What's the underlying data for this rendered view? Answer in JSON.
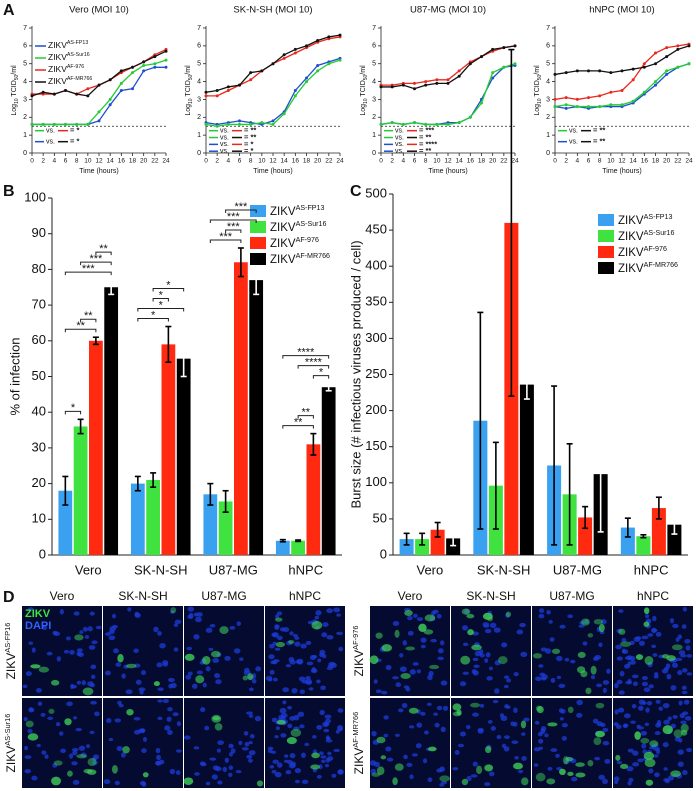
{
  "panel_labels": [
    "A",
    "B",
    "C",
    "D"
  ],
  "chart_data": [
    {
      "type": "line",
      "title": "Vero (MOI 10)",
      "xlabel": "Time (hours)",
      "ylabel": [
        {
          "text": "Log"
        },
        {
          "text": "10",
          "sub": true
        },
        {
          "text": " TCID"
        },
        {
          "text": "50",
          "sub": true
        },
        {
          "text": "/ml"
        }
      ],
      "x": [
        0,
        2,
        4,
        6,
        8,
        10,
        12,
        14,
        16,
        18,
        20,
        22,
        24
      ],
      "xlim": [
        0,
        24
      ],
      "xticks": [
        0,
        2,
        4,
        6,
        8,
        10,
        12,
        14,
        16,
        18,
        20,
        22,
        24
      ],
      "ylim": [
        0,
        7
      ],
      "yticks": [
        0,
        1,
        2,
        3,
        4,
        5,
        6,
        7
      ],
      "threshold": 1.5,
      "legend": true,
      "series": [
        {
          "name": "ZIKV",
          "superscript": "AS-FP13",
          "color": "#1f4fd0",
          "values": [
            1.6,
            1.6,
            1.6,
            1.6,
            1.6,
            1.6,
            1.8,
            2.7,
            3.5,
            3.6,
            4.6,
            4.8,
            4.8
          ]
        },
        {
          "name": "ZIKV",
          "superscript": "AS-Sur16",
          "color": "#22cc33",
          "values": [
            1.6,
            1.6,
            1.6,
            1.6,
            1.6,
            1.6,
            2.3,
            3.0,
            3.9,
            4.5,
            4.9,
            5.0,
            5.2
          ]
        },
        {
          "name": "ZIKV",
          "superscript": "AF-976",
          "color": "#e8281e",
          "values": [
            3.3,
            3.3,
            3.3,
            3.5,
            3.3,
            3.6,
            3.8,
            4.1,
            4.5,
            4.8,
            5.1,
            5.5,
            5.8
          ]
        },
        {
          "name": "ZIKV",
          "superscript": "AF-MR766",
          "color": "#111111",
          "values": [
            3.2,
            3.4,
            3.3,
            3.5,
            3.3,
            3.2,
            3.8,
            4.1,
            4.6,
            4.8,
            5.1,
            5.4,
            5.7
          ]
        }
      ],
      "comparisons": [
        {
          "left": "#22cc33",
          "text": "vs.",
          "right": "#e8281e",
          "result": "= *"
        },
        {
          "left": "#1f4fd0",
          "text": "vs.",
          "right": "#111111",
          "result": "= *"
        }
      ]
    },
    {
      "type": "line",
      "title": "SK-N-SH (MOI 10)",
      "xlabel": "Time (hours)",
      "ylabel": [
        {
          "text": "Log"
        },
        {
          "text": "10",
          "sub": true
        },
        {
          "text": " TCID"
        },
        {
          "text": "50",
          "sub": true
        },
        {
          "text": "/ml"
        }
      ],
      "x": [
        0,
        2,
        4,
        6,
        8,
        10,
        12,
        14,
        16,
        18,
        20,
        22,
        24
      ],
      "xlim": [
        0,
        24
      ],
      "xticks": [
        0,
        2,
        4,
        6,
        8,
        10,
        12,
        14,
        16,
        18,
        20,
        22,
        24
      ],
      "ylim": [
        0,
        7
      ],
      "yticks": [
        0,
        1,
        2,
        3,
        4,
        5,
        6,
        7
      ],
      "threshold": 1.5,
      "series": [
        {
          "color": "#1f4fd0",
          "values": [
            1.7,
            1.6,
            1.7,
            1.8,
            1.7,
            1.6,
            1.8,
            2.3,
            3.5,
            4.2,
            4.9,
            5.1,
            5.3
          ]
        },
        {
          "color": "#22cc33",
          "values": [
            1.6,
            1.5,
            1.6,
            1.6,
            1.6,
            1.7,
            1.6,
            2.2,
            3.2,
            4.0,
            4.6,
            5.0,
            5.2
          ]
        },
        {
          "color": "#e8281e",
          "values": [
            3.2,
            3.2,
            3.5,
            3.8,
            4.1,
            4.6,
            5.0,
            5.3,
            5.6,
            5.9,
            6.2,
            6.4,
            6.5
          ]
        },
        {
          "color": "#111111",
          "values": [
            3.4,
            3.5,
            3.7,
            3.8,
            4.5,
            4.6,
            5.0,
            5.5,
            5.8,
            6.0,
            6.3,
            6.5,
            6.6
          ]
        }
      ],
      "comparisons": [
        {
          "left": "#22cc33",
          "text": "vs.",
          "right": "#e8281e",
          "result": "= **"
        },
        {
          "left": "#22cc33",
          "text": "vs.",
          "right": "#111111",
          "result": "= **"
        },
        {
          "left": "#1f4fd0",
          "text": "vs.",
          "right": "#e8281e",
          "result": "= *"
        },
        {
          "left": "#1f4fd0",
          "text": "vs.",
          "right": "#111111",
          "result": "= *"
        }
      ]
    },
    {
      "type": "line",
      "title": "U87-MG (MOI 10)",
      "xlabel": "Time (hours)",
      "ylabel": [
        {
          "text": "Log"
        },
        {
          "text": "10",
          "sub": true
        },
        {
          "text": " TCID"
        },
        {
          "text": "50",
          "sub": true
        },
        {
          "text": "/ml"
        }
      ],
      "x": [
        0,
        2,
        4,
        6,
        8,
        10,
        12,
        14,
        16,
        18,
        20,
        22,
        24
      ],
      "xlim": [
        0,
        24
      ],
      "xticks": [
        0,
        2,
        4,
        6,
        8,
        10,
        12,
        14,
        16,
        18,
        20,
        22,
        24
      ],
      "ylim": [
        0,
        7
      ],
      "yticks": [
        0,
        1,
        2,
        3,
        4,
        5,
        6,
        7
      ],
      "threshold": 1.5,
      "series": [
        {
          "color": "#1f4fd0",
          "values": [
            1.6,
            1.7,
            1.6,
            1.7,
            1.6,
            1.6,
            1.7,
            1.7,
            2.0,
            3.0,
            4.2,
            4.8,
            4.9
          ]
        },
        {
          "color": "#22cc33",
          "values": [
            1.6,
            1.7,
            1.6,
            1.7,
            1.6,
            1.6,
            1.6,
            1.7,
            2.0,
            2.8,
            4.5,
            4.8,
            5.0
          ]
        },
        {
          "color": "#e8281e",
          "values": [
            3.8,
            3.8,
            3.9,
            3.9,
            4.0,
            4.1,
            4.1,
            4.6,
            5.1,
            5.4,
            5.7,
            5.9,
            6.0
          ]
        },
        {
          "color": "#111111",
          "values": [
            3.7,
            3.7,
            3.8,
            3.6,
            3.8,
            3.9,
            3.9,
            4.3,
            5.0,
            5.4,
            5.8,
            5.9,
            6.0
          ]
        }
      ],
      "comparisons": [
        {
          "left": "#22cc33",
          "text": "vs.",
          "right": "#e8281e",
          "result": "= ***"
        },
        {
          "left": "#22cc33",
          "text": "vs.",
          "right": "#111111",
          "result": "= **"
        },
        {
          "left": "#1f4fd0",
          "text": "vs.",
          "right": "#e8281e",
          "result": "= ****"
        },
        {
          "left": "#1f4fd0",
          "text": "vs.",
          "right": "#111111",
          "result": "= **"
        }
      ]
    },
    {
      "type": "line",
      "title": "hNPC (MOI 10)",
      "xlabel": "Time (hours)",
      "ylabel": [
        {
          "text": "Log"
        },
        {
          "text": "10",
          "sub": true
        },
        {
          "text": " TCID"
        },
        {
          "text": "50",
          "sub": true
        },
        {
          "text": "/ml"
        }
      ],
      "x": [
        0,
        2,
        4,
        6,
        8,
        10,
        12,
        14,
        16,
        18,
        20,
        22,
        24
      ],
      "xlim": [
        0,
        24
      ],
      "xticks": [
        0,
        2,
        4,
        6,
        8,
        10,
        12,
        14,
        16,
        18,
        20,
        22,
        24
      ],
      "ylim": [
        0,
        7
      ],
      "yticks": [
        0,
        1,
        2,
        3,
        4,
        5,
        6,
        7
      ],
      "threshold": 1.5,
      "series": [
        {
          "color": "#1f4fd0",
          "values": [
            2.6,
            2.5,
            2.6,
            2.5,
            2.6,
            2.6,
            2.6,
            2.8,
            3.3,
            3.8,
            4.4,
            4.8,
            5.0
          ]
        },
        {
          "color": "#22cc33",
          "values": [
            2.6,
            2.7,
            2.6,
            2.6,
            2.6,
            2.7,
            2.7,
            2.9,
            3.4,
            4.0,
            4.6,
            4.8,
            5.0
          ]
        },
        {
          "color": "#e8281e",
          "values": [
            3.0,
            3.1,
            3.0,
            3.1,
            3.2,
            3.4,
            3.5,
            4.1,
            5.0,
            5.6,
            5.9,
            6.0,
            6.1
          ]
        },
        {
          "color": "#111111",
          "values": [
            4.4,
            4.5,
            4.6,
            4.6,
            4.6,
            4.5,
            4.6,
            4.7,
            4.8,
            5.0,
            5.4,
            5.8,
            6.0
          ]
        }
      ],
      "comparisons": [
        {
          "left": "#22cc33",
          "text": "vs.",
          "right": "#111111",
          "result": "= **"
        },
        {
          "left": "#1f4fd0",
          "text": "vs.",
          "right": "#111111",
          "result": "= **"
        }
      ]
    },
    {
      "type": "bar",
      "ylabel": "% of infection",
      "categories": [
        "Vero",
        "SK-N-SH",
        "U87-MG",
        "hNPC"
      ],
      "ylim": [
        0,
        100
      ],
      "yticks": [
        0,
        10,
        20,
        30,
        40,
        50,
        60,
        70,
        80,
        90,
        100
      ],
      "series": [
        {
          "name": "ZIKV",
          "superscript": "AS-FP13",
          "color": "#3aa0f0",
          "values": [
            18,
            20,
            17,
            4
          ],
          "errors": [
            4,
            2,
            3,
            0.3
          ]
        },
        {
          "name": "ZIKV",
          "superscript": "AS-Sur16",
          "color": "#3fe23f",
          "values": [
            36,
            21,
            15,
            4
          ],
          "errors": [
            2,
            2,
            3,
            0.2
          ]
        },
        {
          "name": "ZIKV",
          "superscript": "AF-976",
          "color": "#ff2a10",
          "values": [
            60,
            59,
            82,
            31
          ],
          "errors": [
            1,
            5,
            4,
            3
          ]
        },
        {
          "name": "ZIKV",
          "superscript": "AF-MR766",
          "color": "#000000",
          "error_color": "#ffffff",
          "values": [
            75,
            55,
            77,
            47
          ],
          "errors": [
            2,
            5,
            4,
            1
          ]
        }
      ],
      "brackets": [
        {
          "category": 0,
          "pair": [
            0,
            1
          ],
          "label": "*"
        },
        {
          "category": 0,
          "pair": [
            0,
            2
          ],
          "label": "**"
        },
        {
          "category": 0,
          "pair": [
            1,
            2
          ],
          "label": "**"
        },
        {
          "category": 0,
          "pair": [
            0,
            3
          ],
          "label": "***"
        },
        {
          "category": 0,
          "pair": [
            1,
            3
          ],
          "label": "***"
        },
        {
          "category": 0,
          "pair": [
            2,
            3
          ],
          "label": "**"
        },
        {
          "category": 1,
          "pair": [
            0,
            2
          ],
          "label": "*"
        },
        {
          "category": 1,
          "pair": [
            0,
            3
          ],
          "label": "*"
        },
        {
          "category": 1,
          "pair": [
            1,
            2
          ],
          "label": "*"
        },
        {
          "category": 1,
          "pair": [
            1,
            3
          ],
          "label": "*"
        },
        {
          "category": 2,
          "pair": [
            0,
            2
          ],
          "label": "***"
        },
        {
          "category": 2,
          "pair": [
            1,
            2
          ],
          "label": "***"
        },
        {
          "category": 2,
          "pair": [
            0,
            3
          ],
          "label": "***"
        },
        {
          "category": 2,
          "pair": [
            1,
            3
          ],
          "label": "***"
        },
        {
          "category": 3,
          "pair": [
            0,
            2
          ],
          "label": "**"
        },
        {
          "category": 3,
          "pair": [
            1,
            2
          ],
          "label": "**"
        },
        {
          "category": 3,
          "pair": [
            2,
            3
          ],
          "label": "*"
        },
        {
          "category": 3,
          "pair": [
            1,
            3
          ],
          "label": "****"
        },
        {
          "category": 3,
          "pair": [
            0,
            3
          ],
          "label": "****"
        }
      ]
    },
    {
      "type": "bar",
      "ylabel": "Burst size (# infectious viruses produced / cell)",
      "categories": [
        "Vero",
        "SK-N-SH",
        "U87-MG",
        "hNPC"
      ],
      "ylim": [
        0,
        500
      ],
      "yticks": [
        0,
        50,
        100,
        150,
        200,
        250,
        300,
        350,
        400,
        450,
        500
      ],
      "series": [
        {
          "name": "ZIKV",
          "superscript": "AS-FP13",
          "color": "#3aa0f0",
          "values": [
            22,
            186,
            124,
            38
          ],
          "errors": [
            8,
            150,
            110,
            13
          ]
        },
        {
          "name": "ZIKV",
          "superscript": "AS-Sur16",
          "color": "#3fe23f",
          "values": [
            22,
            96,
            84,
            26
          ],
          "errors": [
            8,
            60,
            70,
            2
          ]
        },
        {
          "name": "ZIKV",
          "superscript": "AF-976",
          "color": "#ff2a10",
          "values": [
            35,
            460,
            52,
            65
          ],
          "errors": [
            10,
            240,
            15,
            15
          ]
        },
        {
          "name": "ZIKV",
          "superscript": "AF-MR766",
          "color": "#000000",
          "error_color": "#ffffff",
          "values": [
            23,
            236,
            112,
            42
          ],
          "errors": [
            10,
            20,
            80,
            13
          ]
        }
      ]
    }
  ],
  "micrographs": {
    "stain_labels": [
      {
        "text": "ZIKV",
        "color": "#3fe23f"
      },
      {
        "text": "DAPI",
        "color": "#3060ff"
      }
    ],
    "blocks": [
      {
        "columns": [
          "Vero",
          "SK-N-SH",
          "U87-MG",
          "hNPC"
        ],
        "rows": [
          {
            "name": "ZIKV",
            "superscript": "AS-FP16"
          },
          {
            "name": "ZIKV",
            "superscript": "AS-Sur16"
          }
        ]
      },
      {
        "columns": [
          "Vero",
          "SK-N-SH",
          "U87-MG",
          "hNPC"
        ],
        "rows": [
          {
            "name": "ZIKV",
            "superscript": "AF-976"
          },
          {
            "name": "ZIKV",
            "superscript": "AF-MR766"
          }
        ]
      }
    ]
  }
}
